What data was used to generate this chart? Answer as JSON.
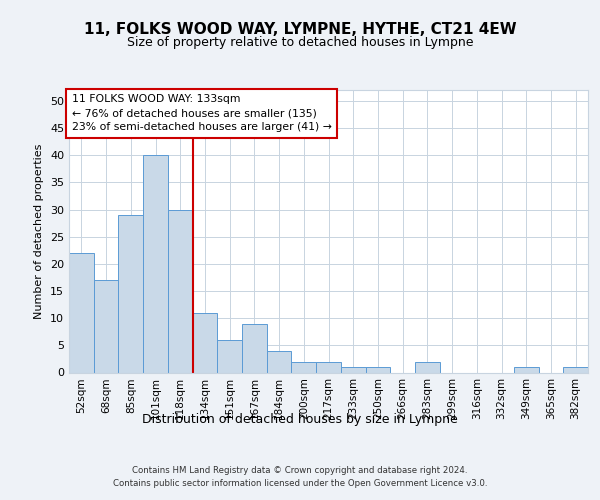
{
  "title_line1": "11, FOLKS WOOD WAY, LYMPNE, HYTHE, CT21 4EW",
  "title_line2": "Size of property relative to detached houses in Lympne",
  "xlabel": "Distribution of detached houses by size in Lympne",
  "ylabel": "Number of detached properties",
  "categories": [
    "52sqm",
    "68sqm",
    "85sqm",
    "101sqm",
    "118sqm",
    "134sqm",
    "151sqm",
    "167sqm",
    "184sqm",
    "200sqm",
    "217sqm",
    "233sqm",
    "250sqm",
    "266sqm",
    "283sqm",
    "299sqm",
    "316sqm",
    "332sqm",
    "349sqm",
    "365sqm",
    "382sqm"
  ],
  "values": [
    22,
    17,
    29,
    40,
    30,
    11,
    6,
    9,
    4,
    2,
    2,
    1,
    1,
    0,
    2,
    0,
    0,
    0,
    1,
    0,
    1
  ],
  "bar_color": "#c9d9e8",
  "bar_edge_color": "#5b9bd5",
  "vline_x": 4.5,
  "vline_color": "#cc0000",
  "annotation_text": "11 FOLKS WOOD WAY: 133sqm\n← 76% of detached houses are smaller (135)\n23% of semi-detached houses are larger (41) →",
  "annotation_box_color": "#ffffff",
  "annotation_box_edge_color": "#cc0000",
  "ylim": [
    0,
    52
  ],
  "yticks": [
    0,
    5,
    10,
    15,
    20,
    25,
    30,
    35,
    40,
    45,
    50
  ],
  "footer_line1": "Contains HM Land Registry data © Crown copyright and database right 2024.",
  "footer_line2": "Contains public sector information licensed under the Open Government Licence v3.0.",
  "bg_color": "#eef2f7",
  "plot_bg_color": "#ffffff",
  "grid_color": "#c8d4e0"
}
